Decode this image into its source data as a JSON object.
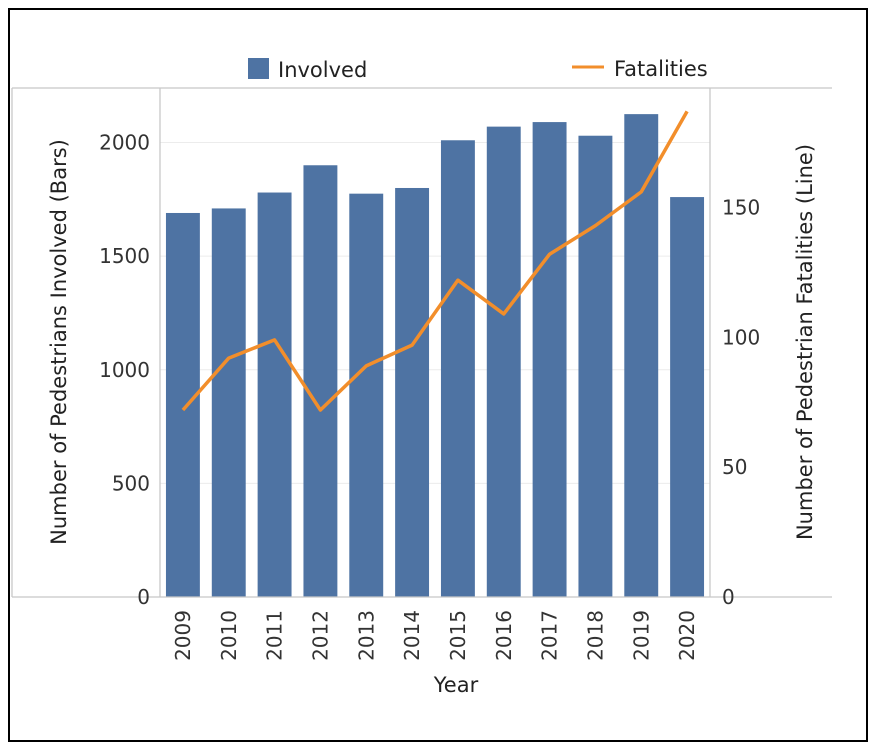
{
  "chart_data": {
    "type": "bar+line",
    "title": "",
    "categories": [
      "2009",
      "2010",
      "2011",
      "2012",
      "2013",
      "2014",
      "2015",
      "2016",
      "2017",
      "2018",
      "2019",
      "2020"
    ],
    "series": [
      {
        "name": "Involved",
        "type": "bar",
        "axis": "left",
        "color": "#4e73a3",
        "values": [
          1690,
          1710,
          1780,
          1900,
          1775,
          1800,
          2010,
          2070,
          2090,
          2030,
          2125,
          1760
        ]
      },
      {
        "name": "Fatalities",
        "type": "line",
        "axis": "right",
        "color": "#f28e2b",
        "values": [
          72,
          92,
          99,
          72,
          89,
          97,
          122,
          109,
          132,
          143,
          156,
          187
        ]
      }
    ],
    "xlabel": "Year",
    "ylabel_left": "Number of Pedestrians Involved (Bars)",
    "ylabel_right": "Number of Pedestrian Fatalities (Line)",
    "ylim_left": [
      0,
      2240
    ],
    "ylim_right": [
      0,
      196
    ],
    "yticks_left": [
      0,
      500,
      1000,
      1500,
      2000
    ],
    "yticks_right": [
      0,
      50,
      100,
      150
    ],
    "legend": {
      "position": "top",
      "items": [
        "Involved",
        "Fatalities"
      ]
    }
  }
}
